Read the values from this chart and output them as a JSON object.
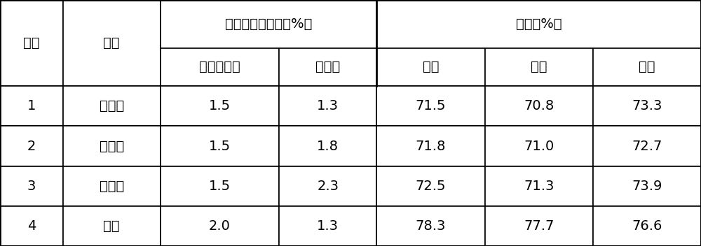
{
  "header1": [
    "编号",
    "制剂",
    "在制剂中的含量（%）",
    "防效（%）"
  ],
  "header2": [
    "低聚壳聚糖",
    "噻唑磷",
    "辣椒",
    "柑橘",
    "松树"
  ],
  "rows": [
    [
      "1",
      "颗粒剂",
      "1.5",
      "1.3",
      "71.5",
      "70.8",
      "73.3"
    ],
    [
      "2",
      "水乳剂",
      "1.5",
      "1.8",
      "71.8",
      "71.0",
      "72.7"
    ],
    [
      "3",
      "悬浮剂",
      "1.5",
      "2.3",
      "72.5",
      "71.3",
      "73.9"
    ],
    [
      "4",
      "乳油",
      "2.0",
      "1.3",
      "78.3",
      "77.7",
      "76.6"
    ]
  ],
  "bg_color": "#ffffff",
  "text_color": "#000000",
  "line_color": "#000000",
  "figsize": [
    10.0,
    3.52
  ],
  "dpi": 100
}
